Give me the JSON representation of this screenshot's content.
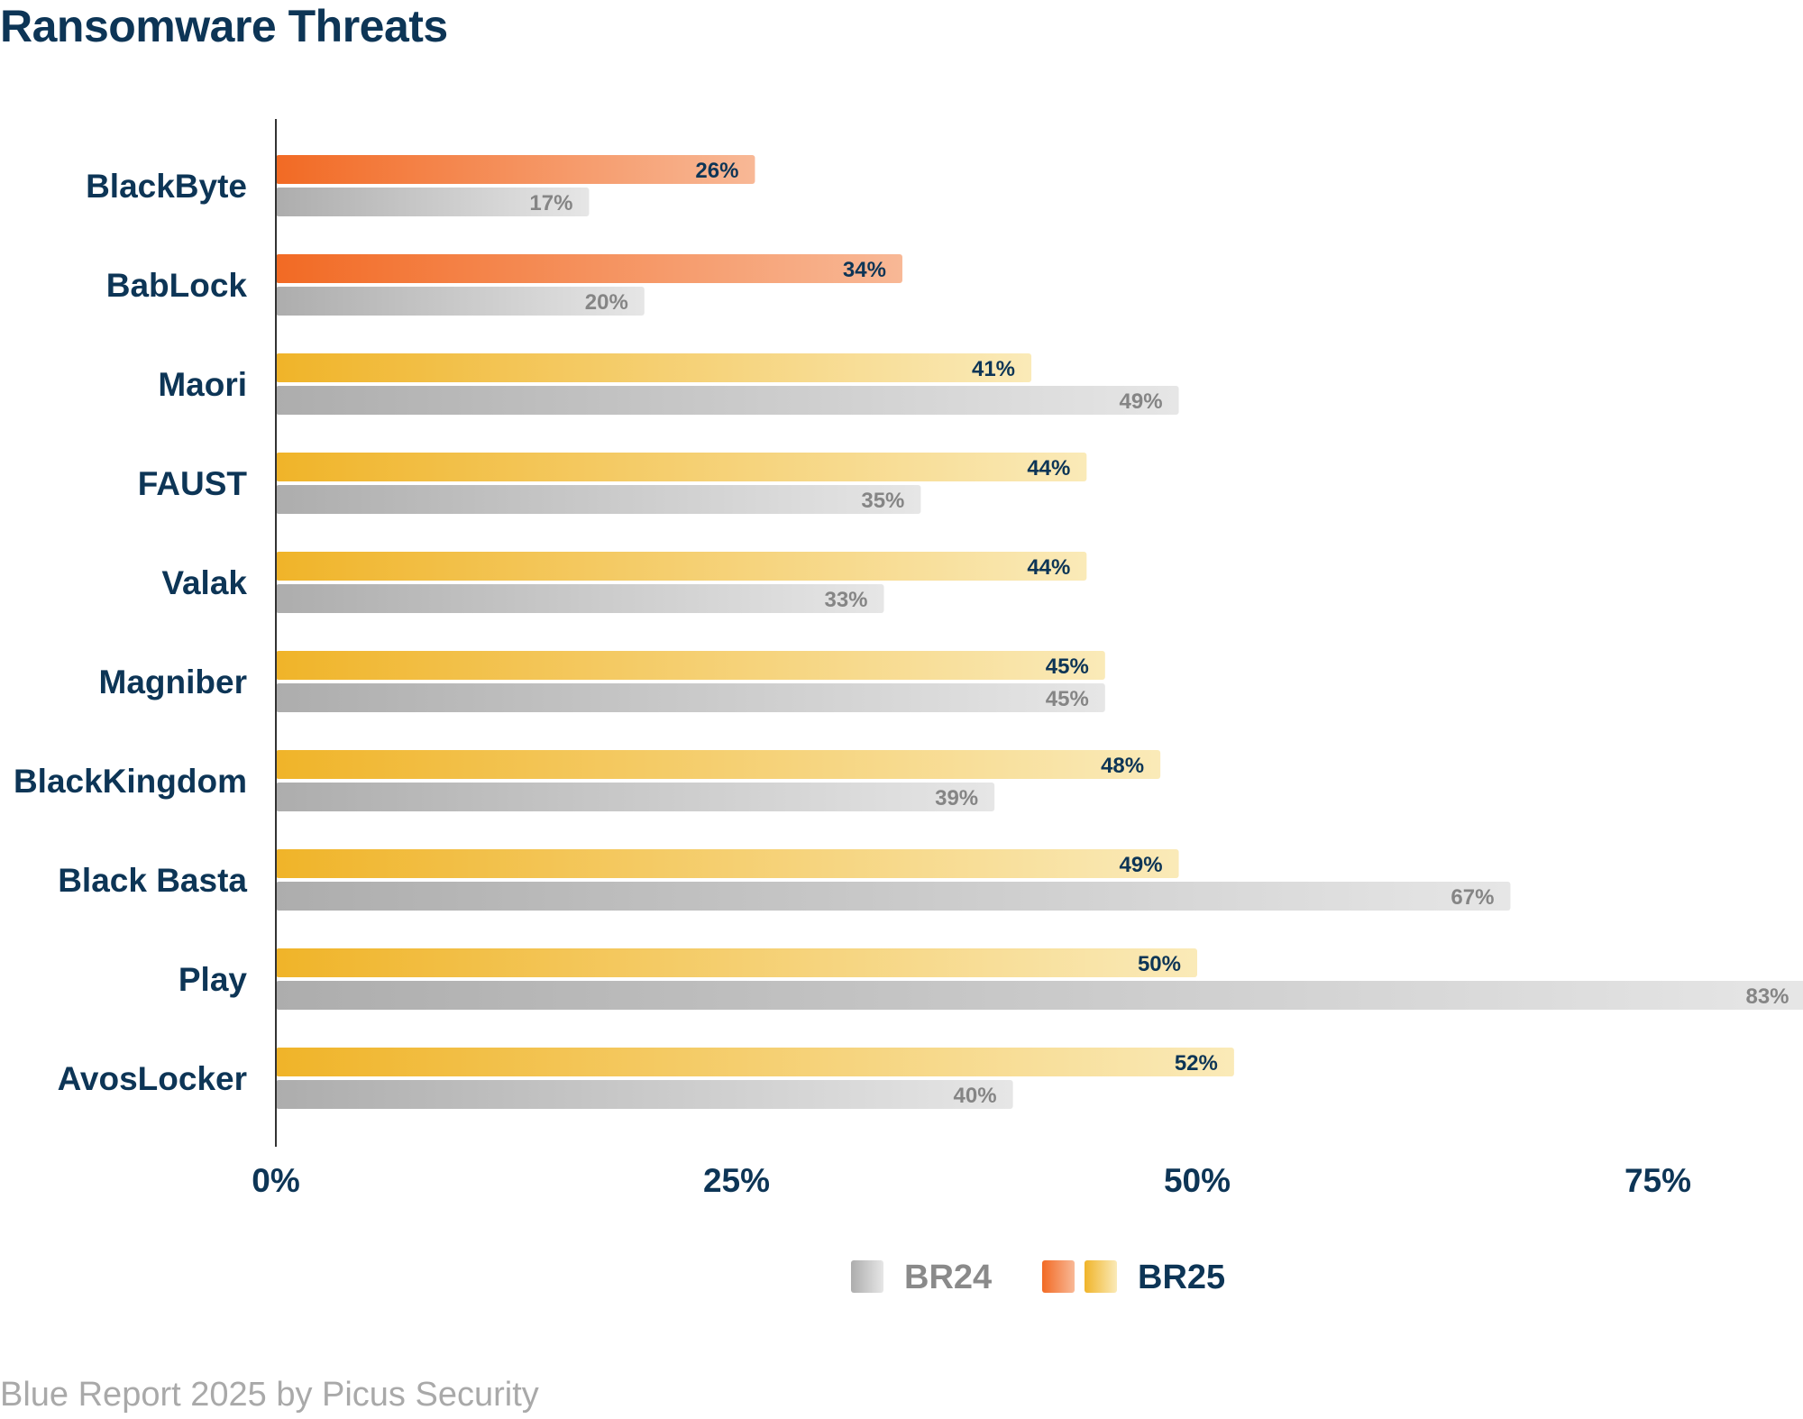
{
  "chart_data": {
    "type": "bar",
    "orientation": "horizontal",
    "title": "Ransomware Threats",
    "categories": [
      "BlackByte",
      "BabLock",
      "Maori",
      "FAUST",
      "Valak",
      "Magniber",
      "BlackKingdom",
      "Black Basta",
      "Play",
      "AvosLocker"
    ],
    "series": [
      {
        "name": "BR25",
        "values": [
          26,
          34,
          41,
          44,
          44,
          45,
          48,
          49,
          50,
          52
        ],
        "labels": [
          "26%",
          "34%",
          "41%",
          "44%",
          "44%",
          "45%",
          "48%",
          "49%",
          "50%",
          "52%"
        ],
        "highlight_color": "#f26a24",
        "base_color": "#f0b429"
      },
      {
        "name": "BR24",
        "values": [
          17,
          20,
          49,
          35,
          33,
          45,
          39,
          67,
          83,
          40
        ],
        "labels": [
          "17%",
          "20%",
          "49%",
          "35%",
          "33%",
          "45%",
          "39%",
          "67%",
          "83%",
          "40%"
        ],
        "color": "#b5b5b5"
      }
    ],
    "highlighted_categories": [
      "BlackByte",
      "BabLock"
    ],
    "xlim": [
      0,
      83
    ],
    "xticks": [
      "0%",
      "25%",
      "50%",
      "75%"
    ],
    "xtick_values": [
      0,
      25,
      50,
      75
    ],
    "legend": {
      "placement": "bottom-center",
      "entries": [
        "BR24",
        "BR25"
      ]
    },
    "grid": false,
    "footer": "Blue Report 2025 by Picus Security"
  }
}
